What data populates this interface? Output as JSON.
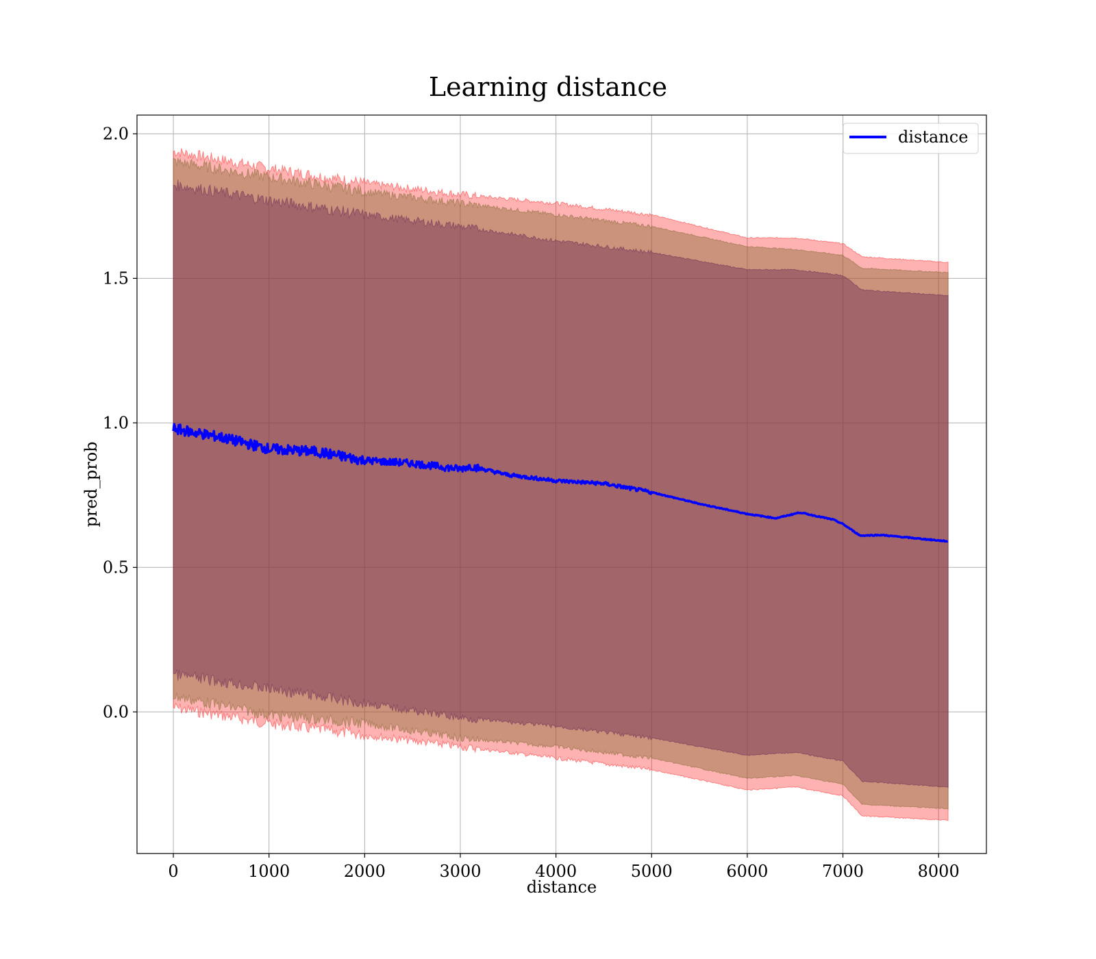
{
  "chart_data": {
    "type": "line",
    "title": "Learning distance",
    "xlabel": "distance",
    "ylabel": "pred_prob",
    "xlim": [
      -380,
      8500
    ],
    "ylim": [
      -0.49,
      2.065
    ],
    "xticks": [
      0,
      1000,
      2000,
      3000,
      4000,
      5000,
      6000,
      7000,
      8000
    ],
    "yticks": [
      0.0,
      0.5,
      1.0,
      1.5,
      2.0
    ],
    "xtick_labels": [
      "0",
      "1000",
      "2000",
      "3000",
      "4000",
      "5000",
      "6000",
      "7000",
      "8000"
    ],
    "ytick_labels": [
      "0.0",
      "0.5",
      "1.0",
      "1.5",
      "2.0"
    ],
    "grid": true,
    "legend_position": "top-right",
    "series": [
      {
        "name": "distance",
        "color": "#0000ff",
        "x": [
          0,
          500,
          1000,
          1500,
          2000,
          2500,
          3000,
          3100,
          3500,
          4000,
          4500,
          5000,
          5500,
          6000,
          6300,
          6550,
          6900,
          7000,
          7180,
          7400,
          8100
        ],
        "y": [
          0.98,
          0.95,
          0.91,
          0.9,
          0.87,
          0.86,
          0.84,
          0.85,
          0.82,
          0.8,
          0.79,
          0.76,
          0.72,
          0.685,
          0.67,
          0.69,
          0.665,
          0.65,
          0.61,
          0.612,
          0.59
        ]
      }
    ],
    "bands": [
      {
        "role": "outer",
        "color": "#ff0000",
        "opacity": 0.3,
        "x": [
          0,
          1000,
          2000,
          3000,
          4000,
          5000,
          6000,
          6500,
          7000,
          7200,
          8100
        ],
        "upper": [
          1.94,
          1.88,
          1.83,
          1.79,
          1.76,
          1.72,
          1.64,
          1.64,
          1.62,
          1.575,
          1.555
        ],
        "lower": [
          0.015,
          -0.04,
          -0.08,
          -0.12,
          -0.16,
          -0.2,
          -0.27,
          -0.26,
          -0.29,
          -0.36,
          -0.375
        ]
      },
      {
        "role": "middle",
        "color": "#8b6d3a",
        "opacity": 0.45,
        "x": [
          0,
          1000,
          2000,
          3000,
          4000,
          5000,
          6000,
          6500,
          7000,
          7200,
          8100
        ],
        "upper": [
          1.905,
          1.85,
          1.8,
          1.76,
          1.72,
          1.68,
          1.61,
          1.6,
          1.58,
          1.535,
          1.52
        ],
        "lower": [
          0.055,
          -0.01,
          -0.04,
          -0.09,
          -0.12,
          -0.16,
          -0.23,
          -0.22,
          -0.25,
          -0.32,
          -0.335
        ]
      },
      {
        "role": "inner",
        "color": "#6e2f55",
        "opacity": 0.45,
        "x": [
          0,
          1000,
          2000,
          3000,
          4000,
          5000,
          6000,
          6500,
          7000,
          7200,
          8100
        ],
        "upper": [
          1.825,
          1.77,
          1.72,
          1.68,
          1.63,
          1.59,
          1.53,
          1.53,
          1.51,
          1.46,
          1.44
        ],
        "lower": [
          0.13,
          0.08,
          0.03,
          -0.02,
          -0.05,
          -0.09,
          -0.15,
          -0.14,
          -0.17,
          -0.24,
          -0.26
        ]
      }
    ]
  }
}
